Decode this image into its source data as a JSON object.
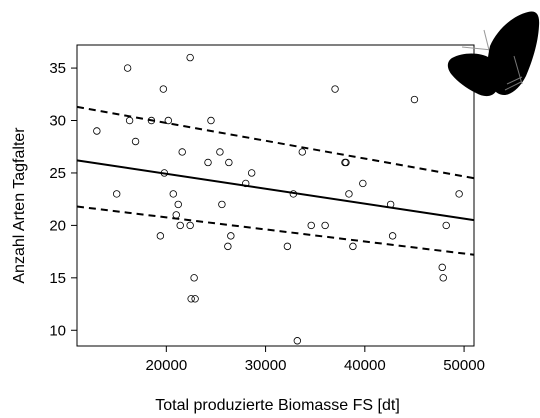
{
  "chart_data": {
    "type": "scatter",
    "title": "",
    "xlabel": "Total produzierte Biomasse FS [dt]",
    "ylabel": "Anzahl Arten Tagfalter",
    "xlim": [
      11000,
      51000
    ],
    "ylim": [
      8.5,
      37.2
    ],
    "xticks": [
      20000,
      30000,
      40000,
      50000
    ],
    "xtick_labels": [
      "20000",
      "30000",
      "40000",
      "50000"
    ],
    "yticks": [
      10,
      15,
      20,
      25,
      30,
      35
    ],
    "ytick_labels": [
      "10",
      "15",
      "20",
      "25",
      "30",
      "35"
    ],
    "grid": false,
    "series": [
      {
        "marker": "open-circle",
        "points": [
          {
            "x": 13000,
            "y": 29
          },
          {
            "x": 16100,
            "y": 35
          },
          {
            "x": 15000,
            "y": 23
          },
          {
            "x": 16300,
            "y": 30
          },
          {
            "x": 16900,
            "y": 28
          },
          {
            "x": 18500,
            "y": 30
          },
          {
            "x": 19400,
            "y": 19
          },
          {
            "x": 19700,
            "y": 33
          },
          {
            "x": 19800,
            "y": 25
          },
          {
            "x": 20200,
            "y": 30
          },
          {
            "x": 20700,
            "y": 23
          },
          {
            "x": 21000,
            "y": 21
          },
          {
            "x": 21200,
            "y": 22
          },
          {
            "x": 21400,
            "y": 20
          },
          {
            "x": 21600,
            "y": 27
          },
          {
            "x": 22400,
            "y": 36
          },
          {
            "x": 22400,
            "y": 20
          },
          {
            "x": 22500,
            "y": 13
          },
          {
            "x": 22800,
            "y": 15
          },
          {
            "x": 22900,
            "y": 13
          },
          {
            "x": 24200,
            "y": 26
          },
          {
            "x": 24500,
            "y": 30
          },
          {
            "x": 25400,
            "y": 27
          },
          {
            "x": 25600,
            "y": 22
          },
          {
            "x": 26200,
            "y": 18
          },
          {
            "x": 26300,
            "y": 26
          },
          {
            "x": 26500,
            "y": 19
          },
          {
            "x": 28000,
            "y": 24
          },
          {
            "x": 28600,
            "y": 25
          },
          {
            "x": 32200,
            "y": 18
          },
          {
            "x": 32800,
            "y": 23
          },
          {
            "x": 33200,
            "y": 9
          },
          {
            "x": 33700,
            "y": 27
          },
          {
            "x": 34600,
            "y": 20
          },
          {
            "x": 36000,
            "y": 20
          },
          {
            "x": 37000,
            "y": 33
          },
          {
            "x": 38000,
            "y": 26
          },
          {
            "x": 38100,
            "y": 26
          },
          {
            "x": 38400,
            "y": 23
          },
          {
            "x": 38800,
            "y": 18
          },
          {
            "x": 39800,
            "y": 24
          },
          {
            "x": 42600,
            "y": 22
          },
          {
            "x": 42800,
            "y": 19
          },
          {
            "x": 45000,
            "y": 32
          },
          {
            "x": 47800,
            "y": 16
          },
          {
            "x": 47900,
            "y": 15
          },
          {
            "x": 48200,
            "y": 20
          },
          {
            "x": 49500,
            "y": 23
          }
        ]
      }
    ],
    "regression_line": {
      "style": "solid",
      "x": [
        11000,
        51000
      ],
      "y": [
        26.2,
        20.5
      ]
    },
    "confidence_bands": [
      {
        "style": "dashed",
        "x": [
          11000,
          51000
        ],
        "y": [
          31.3,
          24.5
        ]
      },
      {
        "style": "dashed",
        "x": [
          11000,
          51000
        ],
        "y": [
          21.8,
          17.2
        ]
      }
    ]
  },
  "decoration": {
    "icon": "butterfly-icon"
  }
}
